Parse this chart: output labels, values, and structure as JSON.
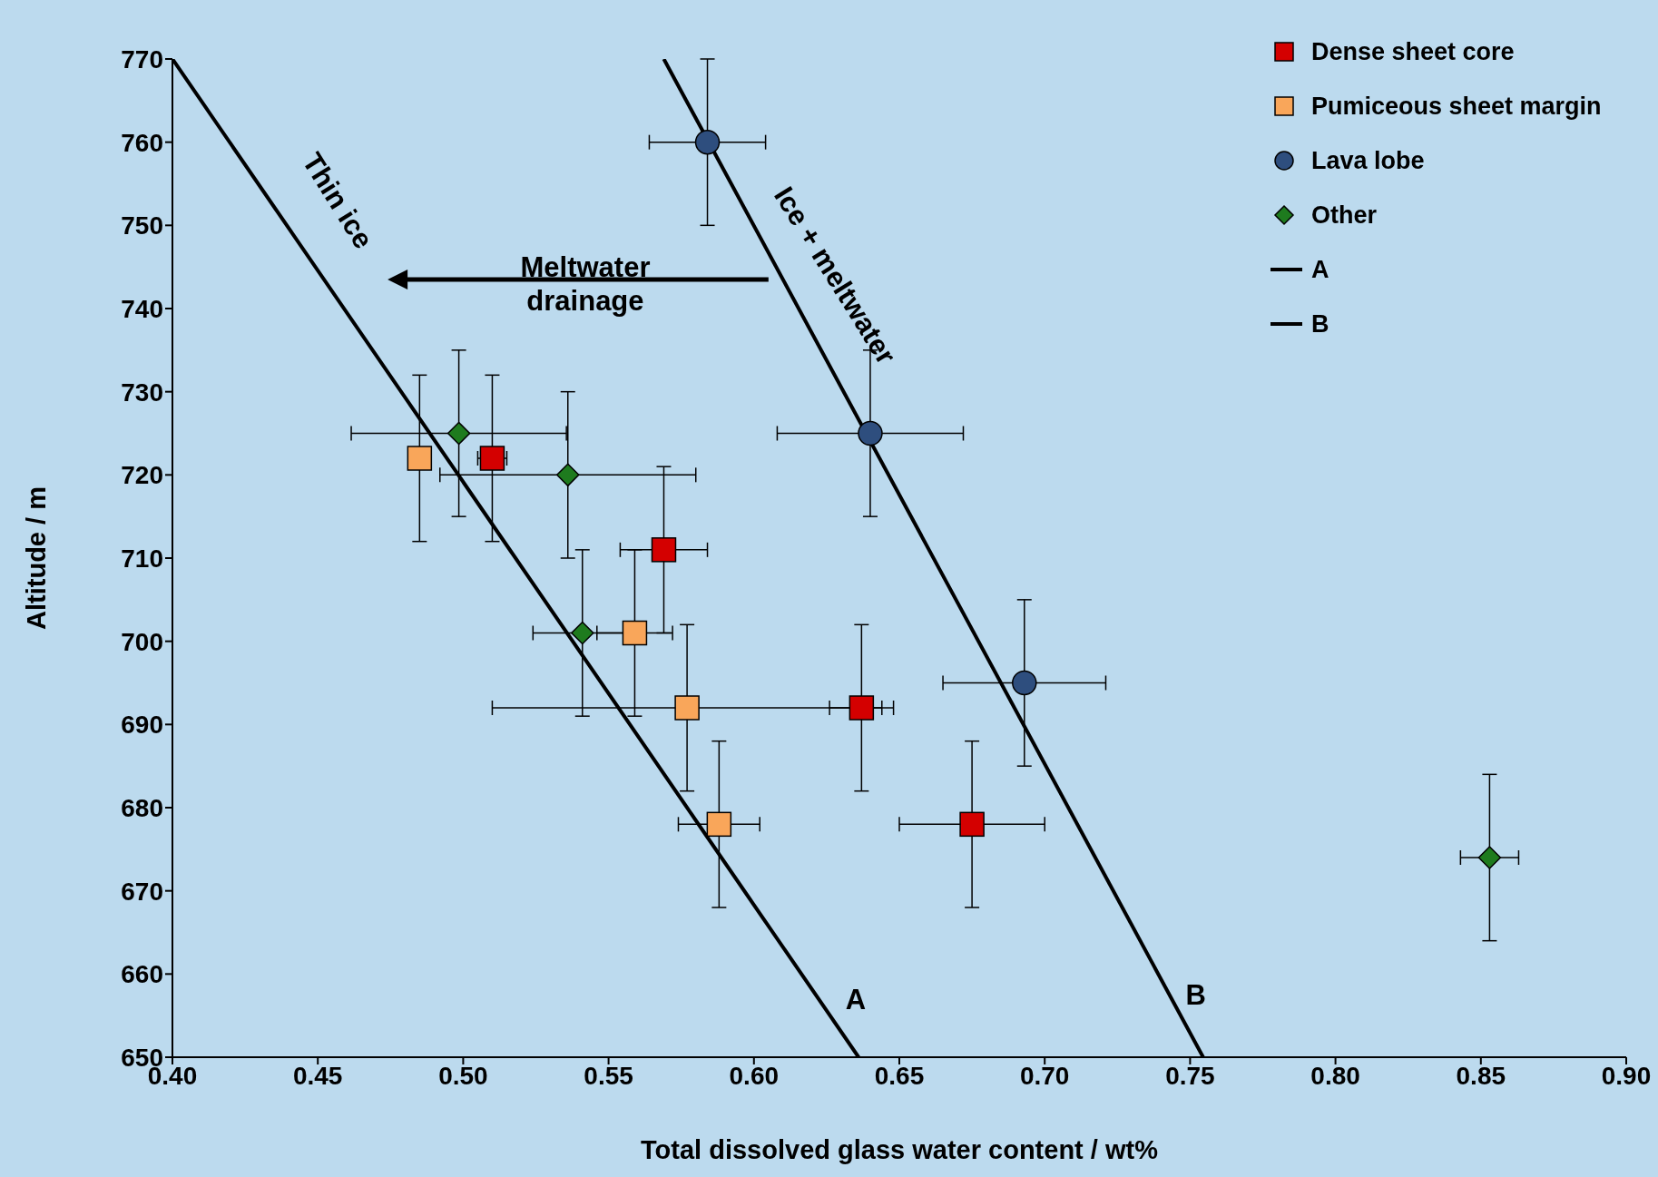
{
  "chart_data": {
    "type": "scatter",
    "xlabel": "Total dissolved glass water content / wt%",
    "ylabel": "Altitude / m",
    "xlim": [
      0.4,
      0.9
    ],
    "xticks": [
      {
        "value": 0.4,
        "label": "0.40"
      },
      {
        "value": 0.45,
        "label": "0.45"
      },
      {
        "value": 0.5,
        "label": "0.50"
      },
      {
        "value": 0.55,
        "label": "0.55"
      },
      {
        "value": 0.6,
        "label": "0.60"
      },
      {
        "value": 0.65,
        "label": "0.65"
      },
      {
        "value": 0.7,
        "label": "0.70"
      },
      {
        "value": 0.75,
        "label": "0.75"
      },
      {
        "value": 0.8,
        "label": "0.80"
      },
      {
        "value": 0.85,
        "label": "0.85"
      },
      {
        "value": 0.9,
        "label": "0.90"
      }
    ],
    "ylim": [
      650,
      770
    ],
    "yticks": [
      650,
      660,
      670,
      680,
      690,
      700,
      710,
      720,
      730,
      740,
      750,
      760,
      770
    ],
    "legend": "top right",
    "series": [
      {
        "name": "Dense sheet core",
        "marker": "square",
        "color": "#d40000",
        "x": [
          0.51,
          0.569,
          0.637,
          0.675
        ],
        "values": [
          722,
          711,
          692,
          678
        ],
        "xerrors": [
          0.005,
          0.015,
          0.011,
          0.025
        ],
        "errors": [
          10,
          10,
          10,
          10
        ]
      },
      {
        "name": "Pumiceous sheet margin",
        "marker": "square",
        "color": "#f9a65a",
        "x": [
          0.485,
          0.559,
          0.577,
          0.588
        ],
        "values": [
          722,
          701,
          692,
          678
        ],
        "xerrors": [
          null,
          0.013,
          0.067,
          0.014
        ],
        "errors": [
          10,
          10,
          10,
          10
        ]
      },
      {
        "name": "Lava lobe",
        "marker": "circle",
        "color": "#2e4e7e",
        "x": [
          0.584,
          0.64,
          0.693
        ],
        "values": [
          760,
          725,
          695
        ],
        "xerrors": [
          0.02,
          0.032,
          0.028
        ],
        "errors": [
          10,
          10,
          10
        ]
      },
      {
        "name": "Other",
        "marker": "diamond",
        "color": "#1e7b1e",
        "x": [
          0.4985,
          0.536,
          0.541,
          0.853
        ],
        "values": [
          725,
          720,
          701,
          674
        ],
        "xerrors": [
          0.037,
          0.044,
          0.017,
          0.01
        ],
        "errors": [
          10,
          10,
          10,
          10
        ]
      },
      {
        "name": "A",
        "type": "line",
        "color": "#000000",
        "x": [
          0.4,
          0.636
        ],
        "values": [
          770,
          650
        ]
      },
      {
        "name": "B",
        "type": "line",
        "color": "#000000",
        "x": [
          0.569,
          0.7545
        ],
        "values": [
          770,
          650
        ]
      }
    ],
    "annotations": [
      "Thin ice",
      "Ice + meltwater",
      "Meltwater\ndrainage",
      "A",
      "B"
    ]
  }
}
